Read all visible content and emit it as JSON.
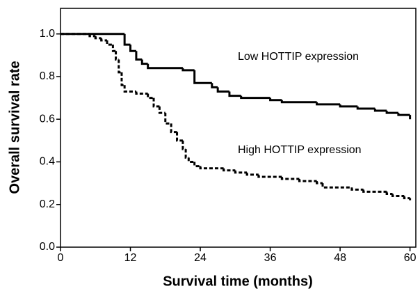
{
  "chart_data": {
    "type": "step",
    "xlabel": "Survival time (months)",
    "ylabel": "Overall survival rate",
    "xlim": [
      0,
      61
    ],
    "ylim": [
      0,
      1.12
    ],
    "xticks": [
      0,
      12,
      24,
      36,
      48,
      60
    ],
    "yticks": [
      {
        "value": 0,
        "label": "0.0"
      },
      {
        "value": 0.2,
        "label": "0.2"
      },
      {
        "value": 0.4,
        "label": "0.4"
      },
      {
        "value": 0.6,
        "label": "0.6"
      },
      {
        "value": 0.8,
        "label": "0.8"
      },
      {
        "value": 1,
        "label": "1.0"
      }
    ],
    "annotations": [
      "Low HOTTIP expression",
      "High HOTTIP expression"
    ],
    "series": [
      {
        "name": "Low HOTTIP expression",
        "color": "#000000",
        "dash": false,
        "x": [
          0,
          11,
          12,
          13,
          14,
          15,
          21,
          23,
          26,
          27,
          29,
          31,
          36,
          38,
          44,
          48,
          51,
          54,
          56,
          58,
          60
        ],
        "values": [
          1.0,
          0.95,
          0.92,
          0.88,
          0.86,
          0.84,
          0.83,
          0.77,
          0.75,
          0.73,
          0.71,
          0.7,
          0.69,
          0.68,
          0.67,
          0.66,
          0.65,
          0.64,
          0.63,
          0.62,
          0.6
        ]
      },
      {
        "name": "High HOTTIP expression",
        "color": "#000000",
        "dash": true,
        "x": [
          0,
          5,
          6,
          7,
          8,
          9,
          9.5,
          10,
          10.5,
          11,
          13,
          15,
          16,
          17,
          18,
          19,
          20,
          21,
          21.5,
          22,
          23,
          24,
          28,
          30,
          32,
          34,
          38,
          41,
          44,
          45,
          50,
          52,
          56,
          57,
          59,
          60
        ],
        "values": [
          1.0,
          0.99,
          0.98,
          0.97,
          0.95,
          0.92,
          0.88,
          0.82,
          0.76,
          0.73,
          0.72,
          0.7,
          0.66,
          0.63,
          0.58,
          0.54,
          0.5,
          0.46,
          0.42,
          0.4,
          0.38,
          0.37,
          0.36,
          0.35,
          0.34,
          0.33,
          0.32,
          0.31,
          0.3,
          0.28,
          0.27,
          0.26,
          0.25,
          0.24,
          0.23,
          0.22
        ]
      }
    ]
  }
}
